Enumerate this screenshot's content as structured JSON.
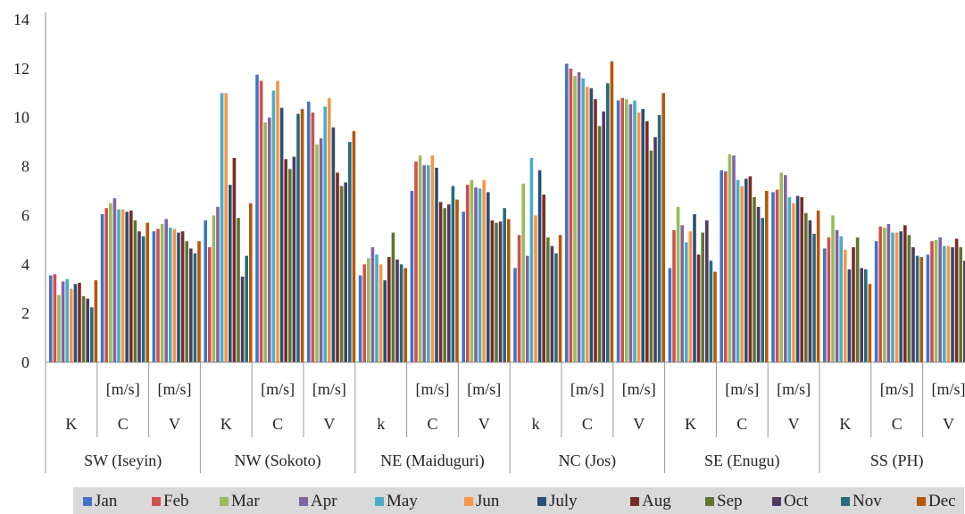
{
  "chart_data": {
    "type": "bar",
    "title": "",
    "xlabel": "",
    "ylabel": "",
    "ylim": [
      0,
      14
    ],
    "yticks": [
      "0",
      "2",
      "4",
      "6",
      "8",
      "10",
      "12",
      "14"
    ],
    "grid": false,
    "legend_position": "bottom",
    "groups": [
      {
        "region": "SW (Iseyin)",
        "categories": [
          {
            "code": "K",
            "unit": "",
            "values": [
              3.55,
              3.6,
              2.75,
              3.3,
              3.4,
              3.0,
              3.2,
              3.25,
              2.7,
              2.6,
              2.25,
              3.35
            ]
          },
          {
            "code": "C",
            "unit": "[m/s]",
            "values": [
              6.05,
              6.3,
              6.5,
              6.7,
              6.25,
              6.25,
              6.15,
              6.2,
              5.8,
              5.35,
              5.15,
              5.7
            ]
          },
          {
            "code": "V",
            "unit": "[m/s]",
            "values": [
              5.35,
              5.45,
              5.65,
              5.85,
              5.5,
              5.45,
              5.3,
              5.35,
              4.95,
              4.65,
              4.45,
              4.95
            ]
          }
        ]
      },
      {
        "region": "NW (Sokoto)",
        "categories": [
          {
            "code": "K",
            "unit": "",
            "values": [
              5.8,
              4.7,
              6.0,
              6.35,
              11.0,
              11.0,
              7.25,
              8.35,
              5.9,
              3.5,
              4.35,
              6.5
            ]
          },
          {
            "code": "C",
            "unit": "[m/s]",
            "values": [
              11.75,
              11.5,
              9.8,
              10.0,
              11.1,
              11.5,
              10.4,
              8.3,
              7.9,
              8.4,
              10.15,
              10.35
            ]
          },
          {
            "code": "V",
            "unit": "[m/s]",
            "values": [
              10.65,
              10.2,
              8.9,
              9.15,
              10.45,
              10.8,
              9.6,
              7.75,
              7.2,
              7.35,
              9.0,
              9.45
            ]
          }
        ]
      },
      {
        "region": "NE (Maiduguri)",
        "categories": [
          {
            "code": "k",
            "unit": "",
            "values": [
              3.55,
              4.0,
              4.25,
              4.7,
              4.4,
              4.0,
              3.35,
              4.3,
              5.3,
              4.2,
              4.0,
              3.85
            ]
          },
          {
            "code": "C",
            "unit": "[m/s]",
            "values": [
              7.0,
              8.2,
              8.45,
              8.05,
              8.05,
              8.45,
              7.95,
              6.55,
              6.3,
              6.45,
              7.2,
              6.65
            ]
          },
          {
            "code": "V",
            "unit": "[m/s]",
            "values": [
              6.15,
              7.25,
              7.45,
              7.15,
              7.1,
              7.45,
              6.95,
              5.8,
              5.7,
              5.75,
              6.3,
              5.85
            ]
          }
        ]
      },
      {
        "region": "NC (Jos)",
        "categories": [
          {
            "code": "k",
            "unit": "",
            "values": [
              3.85,
              5.2,
              7.3,
              4.35,
              8.35,
              6.0,
              7.85,
              6.85,
              5.1,
              4.75,
              4.45,
              5.2
            ]
          },
          {
            "code": "C",
            "unit": "[m/s]",
            "values": [
              12.2,
              12.0,
              11.7,
              11.85,
              11.6,
              11.25,
              11.2,
              10.75,
              9.65,
              10.25,
              11.4,
              12.3
            ]
          },
          {
            "code": "V",
            "unit": "[m/s]",
            "values": [
              10.7,
              10.8,
              10.75,
              10.55,
              10.7,
              10.2,
              10.35,
              9.85,
              8.65,
              9.2,
              10.1,
              11.0
            ]
          }
        ]
      },
      {
        "region": "SE (Enugu)",
        "categories": [
          {
            "code": "K",
            "unit": "",
            "values": [
              3.85,
              5.4,
              6.35,
              5.6,
              4.9,
              5.35,
              6.05,
              4.4,
              5.3,
              5.8,
              4.15,
              3.7
            ]
          },
          {
            "code": "C",
            "unit": "[m/s]",
            "values": [
              7.85,
              7.8,
              8.5,
              8.45,
              7.45,
              7.2,
              7.5,
              7.6,
              6.75,
              6.35,
              5.9,
              7.0
            ]
          },
          {
            "code": "V",
            "unit": "[m/s]",
            "values": [
              6.95,
              7.05,
              7.75,
              7.65,
              6.75,
              6.5,
              6.8,
              6.75,
              6.1,
              5.8,
              5.25,
              6.2
            ]
          }
        ]
      },
      {
        "region": "SS (PH)",
        "categories": [
          {
            "code": "K",
            "unit": "",
            "values": [
              4.65,
              5.1,
              6.0,
              5.4,
              5.15,
              4.6,
              3.8,
              4.7,
              5.1,
              3.85,
              3.8,
              3.2
            ]
          },
          {
            "code": "C",
            "unit": "[m/s]",
            "values": [
              4.95,
              5.55,
              5.5,
              5.65,
              5.3,
              5.3,
              5.35,
              5.6,
              5.2,
              4.7,
              4.35,
              4.3
            ]
          },
          {
            "code": "V",
            "unit": "[m/s]",
            "values": [
              4.4,
              4.95,
              5.0,
              5.1,
              4.75,
              4.75,
              4.7,
              5.05,
              4.7,
              4.15,
              3.85,
              3.8
            ]
          }
        ]
      }
    ],
    "series": [
      {
        "name": "Jan",
        "color": "#4472c4"
      },
      {
        "name": "Feb",
        "color": "#d0504f"
      },
      {
        "name": "Mar",
        "color": "#9bbb59"
      },
      {
        "name": "Apr",
        "color": "#8064a2"
      },
      {
        "name": "May",
        "color": "#4bacc6"
      },
      {
        "name": "Jun",
        "color": "#f79646"
      },
      {
        "name": "July",
        "color": "#2c4d75"
      },
      {
        "name": "Aug",
        "color": "#772c2a"
      },
      {
        "name": "Sep",
        "color": "#5f7530"
      },
      {
        "name": "Oct",
        "color": "#4d3b62"
      },
      {
        "name": "Nov",
        "color": "#276a7c"
      },
      {
        "name": "Dec",
        "color": "#b65708"
      }
    ]
  }
}
